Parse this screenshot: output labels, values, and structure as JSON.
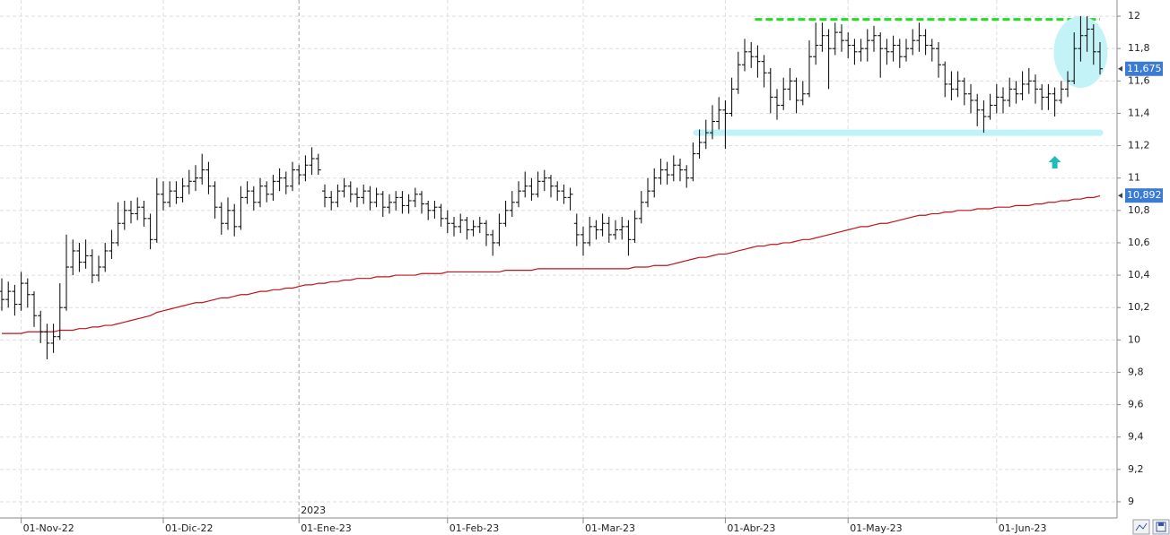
{
  "chart_data": {
    "type": "ohlc",
    "color": "#000000",
    "categories": [
      null,
      null,
      null,
      "01-Nov-22",
      null,
      null,
      null,
      null,
      null,
      null,
      null,
      null,
      null,
      null,
      null,
      null,
      null,
      null,
      null,
      null,
      null,
      null,
      null,
      null,
      null,
      "01-Dic-22",
      null,
      null,
      null,
      null,
      null,
      null,
      null,
      null,
      null,
      null,
      null,
      null,
      null,
      null,
      null,
      null,
      null,
      null,
      null,
      null,
      "01-Ene-23",
      null,
      null,
      null,
      null,
      null,
      null,
      null,
      null,
      null,
      null,
      null,
      null,
      null,
      null,
      null,
      null,
      null,
      null,
      null,
      null,
      null,
      null,
      "01-Feb-23",
      null,
      null,
      null,
      null,
      null,
      null,
      null,
      null,
      null,
      null,
      null,
      null,
      null,
      null,
      null,
      null,
      null,
      null,
      null,
      null,
      "01-Mar-23",
      null,
      null,
      null,
      null,
      null,
      null,
      null,
      null,
      null,
      null,
      null,
      null,
      null,
      null,
      null,
      null,
      null,
      null,
      null,
      null,
      null,
      "01-Abr-23",
      null,
      null,
      null,
      null,
      null,
      null,
      null,
      null,
      null,
      null,
      null,
      null,
      null,
      null,
      null,
      null,
      null,
      null,
      "01-May-23",
      null,
      null,
      null,
      null,
      null,
      null,
      null,
      null,
      null,
      null,
      null,
      null,
      null,
      null,
      null,
      null,
      null,
      null,
      null,
      null,
      null,
      null,
      "01-Jun-23",
      null,
      null,
      null,
      null,
      null,
      null,
      null,
      null,
      null,
      null,
      null,
      null,
      null,
      null,
      null,
      null
    ],
    "open": [
      10.3,
      10.25,
      10.3,
      10.22,
      10.35,
      10.28,
      10.15,
      10.05,
      9.98,
      10.02,
      10.2,
      10.45,
      10.55,
      10.48,
      10.52,
      10.4,
      10.45,
      10.55,
      10.6,
      10.72,
      10.8,
      10.78,
      10.82,
      10.75,
      10.62,
      10.9,
      10.85,
      10.92,
      10.88,
      10.95,
      10.98,
      11.0,
      11.05,
      10.95,
      10.82,
      10.72,
      10.8,
      10.7,
      10.88,
      10.92,
      10.85,
      10.95,
      10.9,
      10.98,
      11.0,
      10.95,
      11.05,
      11.02,
      11.08,
      11.12,
      10.92,
      10.88,
      10.85,
      10.92,
      10.95,
      10.9,
      10.88,
      10.92,
      10.85,
      10.9,
      10.82,
      10.85,
      10.88,
      10.83,
      10.86,
      10.9,
      10.84,
      10.8,
      10.82,
      10.75,
      10.72,
      10.7,
      10.74,
      10.68,
      10.7,
      10.72,
      10.65,
      10.6,
      10.72,
      10.8,
      10.85,
      10.92,
      10.95,
      10.9,
      10.98,
      11.0,
      10.95,
      10.92,
      10.88,
      10.72,
      10.65,
      10.6,
      10.7,
      10.68,
      10.72,
      10.65,
      10.68,
      10.7,
      10.62,
      10.75,
      10.85,
      10.92,
      11.0,
      11.05,
      11.02,
      11.08,
      11.05,
      11.0,
      11.15,
      11.22,
      11.28,
      11.35,
      11.42,
      11.4,
      11.55,
      11.7,
      11.78,
      11.75,
      11.72,
      11.65,
      11.5,
      11.45,
      11.55,
      11.6,
      11.48,
      11.52,
      11.75,
      11.82,
      11.88,
      11.8,
      11.9,
      11.85,
      11.82,
      11.78,
      11.8,
      11.85,
      11.88,
      11.8,
      11.78,
      11.82,
      11.75,
      11.8,
      11.85,
      11.88,
      11.82,
      11.8,
      11.7,
      11.58,
      11.55,
      11.6,
      11.52,
      11.48,
      11.42,
      11.38,
      11.45,
      11.5,
      11.48,
      11.55,
      11.52,
      11.58,
      11.6,
      11.55,
      11.5,
      11.52,
      11.48,
      11.55,
      11.6,
      11.8,
      11.88,
      11.92,
      11.78
    ],
    "high": [
      10.38,
      10.36,
      10.34,
      10.42,
      10.38,
      10.3,
      10.18,
      10.1,
      10.1,
      10.35,
      10.65,
      10.62,
      10.6,
      10.62,
      10.56,
      10.52,
      10.6,
      10.68,
      10.85,
      10.86,
      10.86,
      10.88,
      10.86,
      10.78,
      11.0,
      10.98,
      10.98,
      10.98,
      11.0,
      11.05,
      11.08,
      11.15,
      11.1,
      10.98,
      10.85,
      10.88,
      10.84,
      10.95,
      10.98,
      10.95,
      11.0,
      10.98,
      11.02,
      11.06,
      11.04,
      11.1,
      11.08,
      11.14,
      11.19,
      11.15,
      10.96,
      10.92,
      10.96,
      11.0,
      10.98,
      10.94,
      10.96,
      10.95,
      10.94,
      10.92,
      10.9,
      10.92,
      10.92,
      10.9,
      10.94,
      10.92,
      10.86,
      10.86,
      10.84,
      10.8,
      10.76,
      10.78,
      10.76,
      10.74,
      10.76,
      10.74,
      10.68,
      10.78,
      10.86,
      10.92,
      10.98,
      11.04,
      11.0,
      11.04,
      11.05,
      11.02,
      10.98,
      10.96,
      10.94,
      10.78,
      10.7,
      10.76,
      10.74,
      10.78,
      10.76,
      10.74,
      10.76,
      10.74,
      10.8,
      10.92,
      11.0,
      11.06,
      11.12,
      11.1,
      11.14,
      11.12,
      11.08,
      11.22,
      11.3,
      11.36,
      11.45,
      11.5,
      11.48,
      11.62,
      11.78,
      11.86,
      11.84,
      11.82,
      11.76,
      11.68,
      11.55,
      11.62,
      11.68,
      11.62,
      11.6,
      11.85,
      11.96,
      11.96,
      11.92,
      11.96,
      11.95,
      11.9,
      11.86,
      11.86,
      11.92,
      11.94,
      11.9,
      11.86,
      11.88,
      11.86,
      11.86,
      11.92,
      11.96,
      11.92,
      11.86,
      11.84,
      11.72,
      11.66,
      11.66,
      11.62,
      11.58,
      11.52,
      11.48,
      11.52,
      11.58,
      11.56,
      11.62,
      11.6,
      11.66,
      11.68,
      11.64,
      11.58,
      11.58,
      11.56,
      11.6,
      11.66,
      11.9,
      12.0,
      12.0,
      11.95,
      11.84
    ],
    "low": [
      10.18,
      10.2,
      10.15,
      10.18,
      10.2,
      10.08,
      9.98,
      9.88,
      9.92,
      10.0,
      10.18,
      10.4,
      10.42,
      10.44,
      10.35,
      10.36,
      10.42,
      10.5,
      10.58,
      10.68,
      10.72,
      10.74,
      10.7,
      10.56,
      10.6,
      10.8,
      10.82,
      10.84,
      10.85,
      10.9,
      10.92,
      10.96,
      10.9,
      10.75,
      10.65,
      10.68,
      10.64,
      10.68,
      10.84,
      10.8,
      10.82,
      10.85,
      10.86,
      10.92,
      10.9,
      10.92,
      10.96,
      10.98,
      11.02,
      11.02,
      10.82,
      10.8,
      10.82,
      10.88,
      10.85,
      10.82,
      10.84,
      10.8,
      10.82,
      10.76,
      10.78,
      10.8,
      10.78,
      10.78,
      10.82,
      10.78,
      10.74,
      10.75,
      10.7,
      10.66,
      10.64,
      10.66,
      10.62,
      10.64,
      10.66,
      10.58,
      10.52,
      10.58,
      10.7,
      10.76,
      10.82,
      10.88,
      10.86,
      10.88,
      10.92,
      10.88,
      10.86,
      10.84,
      10.8,
      10.58,
      10.52,
      10.58,
      10.62,
      10.64,
      10.6,
      10.62,
      10.62,
      10.52,
      10.6,
      10.72,
      10.82,
      10.88,
      10.96,
      10.96,
      10.98,
      10.98,
      10.94,
      10.98,
      11.12,
      11.18,
      11.24,
      11.3,
      11.18,
      11.38,
      11.52,
      11.66,
      11.68,
      11.62,
      11.56,
      11.4,
      11.36,
      11.42,
      11.48,
      11.4,
      11.45,
      11.5,
      11.7,
      11.78,
      11.55,
      11.76,
      11.78,
      11.74,
      11.7,
      11.72,
      11.72,
      11.78,
      11.62,
      11.7,
      11.72,
      11.68,
      11.72,
      11.76,
      11.78,
      11.76,
      11.72,
      11.62,
      11.5,
      11.48,
      11.5,
      11.45,
      11.4,
      11.32,
      11.28,
      11.36,
      11.4,
      11.4,
      11.44,
      11.46,
      11.48,
      11.52,
      11.46,
      11.42,
      11.42,
      11.38,
      11.46,
      11.5,
      11.58,
      11.72,
      11.78,
      11.7,
      11.64
    ],
    "close": [
      10.25,
      10.3,
      10.22,
      10.35,
      10.28,
      10.15,
      10.05,
      9.98,
      10.02,
      10.2,
      10.45,
      10.55,
      10.48,
      10.52,
      10.4,
      10.45,
      10.55,
      10.6,
      10.72,
      10.8,
      10.78,
      10.82,
      10.75,
      10.62,
      10.9,
      10.85,
      10.92,
      10.88,
      10.95,
      10.98,
      11.0,
      11.05,
      10.95,
      10.82,
      10.72,
      10.8,
      10.7,
      10.88,
      10.92,
      10.85,
      10.95,
      10.9,
      10.98,
      11.0,
      10.95,
      11.05,
      11.02,
      11.08,
      11.12,
      11.05,
      10.88,
      10.85,
      10.92,
      10.95,
      10.9,
      10.88,
      10.92,
      10.85,
      10.9,
      10.82,
      10.85,
      10.88,
      10.83,
      10.86,
      10.9,
      10.84,
      10.8,
      10.82,
      10.75,
      10.72,
      10.7,
      10.74,
      10.68,
      10.7,
      10.72,
      10.65,
      10.6,
      10.72,
      10.8,
      10.85,
      10.92,
      10.95,
      10.9,
      10.98,
      11.0,
      10.95,
      10.92,
      10.88,
      10.9,
      10.65,
      10.6,
      10.7,
      10.68,
      10.72,
      10.65,
      10.68,
      10.7,
      10.62,
      10.75,
      10.85,
      10.92,
      11.0,
      11.05,
      11.02,
      11.08,
      11.05,
      11.0,
      11.15,
      11.22,
      11.28,
      11.35,
      11.42,
      11.4,
      11.55,
      11.7,
      11.78,
      11.75,
      11.72,
      11.65,
      11.5,
      11.45,
      11.55,
      11.6,
      11.48,
      11.52,
      11.75,
      11.82,
      11.88,
      11.8,
      11.9,
      11.85,
      11.82,
      11.78,
      11.8,
      11.85,
      11.88,
      11.8,
      11.78,
      11.82,
      11.75,
      11.8,
      11.85,
      11.88,
      11.82,
      11.8,
      11.7,
      11.58,
      11.55,
      11.6,
      11.52,
      11.48,
      11.42,
      11.38,
      11.45,
      11.5,
      11.48,
      11.55,
      11.52,
      11.58,
      11.6,
      11.55,
      11.5,
      11.52,
      11.48,
      11.55,
      11.6,
      11.8,
      11.88,
      11.92,
      11.78,
      11.675
    ],
    "moving_average": {
      "color": "#c0141c",
      "values": [
        10.04,
        10.04,
        10.04,
        10.04,
        10.05,
        10.05,
        10.05,
        10.05,
        10.05,
        10.06,
        10.06,
        10.06,
        10.07,
        10.07,
        10.08,
        10.08,
        10.09,
        10.09,
        10.1,
        10.11,
        10.12,
        10.13,
        10.14,
        10.15,
        10.17,
        10.18,
        10.19,
        10.2,
        10.21,
        10.22,
        10.23,
        10.23,
        10.24,
        10.25,
        10.26,
        10.26,
        10.27,
        10.28,
        10.28,
        10.29,
        10.3,
        10.3,
        10.31,
        10.31,
        10.32,
        10.32,
        10.33,
        10.34,
        10.34,
        10.35,
        10.35,
        10.36,
        10.36,
        10.37,
        10.37,
        10.38,
        10.38,
        10.38,
        10.39,
        10.39,
        10.39,
        10.4,
        10.4,
        10.4,
        10.4,
        10.41,
        10.41,
        10.41,
        10.41,
        10.42,
        10.42,
        10.42,
        10.42,
        10.42,
        10.42,
        10.42,
        10.42,
        10.42,
        10.43,
        10.43,
        10.43,
        10.43,
        10.43,
        10.44,
        10.44,
        10.44,
        10.44,
        10.44,
        10.44,
        10.44,
        10.44,
        10.44,
        10.44,
        10.44,
        10.44,
        10.44,
        10.44,
        10.44,
        10.45,
        10.45,
        10.45,
        10.46,
        10.46,
        10.46,
        10.47,
        10.48,
        10.49,
        10.5,
        10.51,
        10.51,
        10.52,
        10.53,
        10.53,
        10.54,
        10.55,
        10.56,
        10.57,
        10.58,
        10.58,
        10.59,
        10.59,
        10.6,
        10.6,
        10.61,
        10.62,
        10.62,
        10.63,
        10.64,
        10.65,
        10.66,
        10.67,
        10.68,
        10.69,
        10.7,
        10.7,
        10.71,
        10.72,
        10.72,
        10.73,
        10.74,
        10.75,
        10.76,
        10.77,
        10.77,
        10.78,
        10.78,
        10.79,
        10.79,
        10.8,
        10.8,
        10.8,
        10.81,
        10.81,
        10.81,
        10.82,
        10.82,
        10.82,
        10.83,
        10.83,
        10.83,
        10.84,
        10.84,
        10.85,
        10.85,
        10.86,
        10.86,
        10.87,
        10.87,
        10.88,
        10.88,
        10.89
      ]
    },
    "ylim": [
      8.9,
      12.1
    ],
    "yticks": [
      {
        "value": 9,
        "label": "9"
      },
      {
        "value": 9.2,
        "label": "9,2"
      },
      {
        "value": 9.4,
        "label": "9,4"
      },
      {
        "value": 9.6,
        "label": "9,6"
      },
      {
        "value": 9.8,
        "label": "9,8"
      },
      10,
      {
        "value": 10.2,
        "label": "10,2"
      },
      {
        "value": 10.4,
        "label": "10,4"
      },
      {
        "value": 10.6,
        "label": "10,6"
      },
      {
        "value": 10.8,
        "label": "10,8"
      },
      11,
      {
        "value": 11.2,
        "label": "11,2"
      },
      {
        "value": 11.4,
        "label": "11,4"
      },
      {
        "value": 11.6,
        "label": "11,6"
      },
      {
        "value": 11.8,
        "label": "11,8"
      },
      12
    ],
    "grid": true,
    "year_label": "2023",
    "price_labels": [
      {
        "value": 11.675,
        "label": "11,675",
        "color": "#3a7bd5"
      },
      {
        "value": 10.892,
        "label": "10,892",
        "color": "#3a7bd5"
      }
    ],
    "resistance": {
      "value": 11.98,
      "color": "#22dd22"
    },
    "support": {
      "value": 11.28,
      "color": "#bff3f8"
    }
  }
}
